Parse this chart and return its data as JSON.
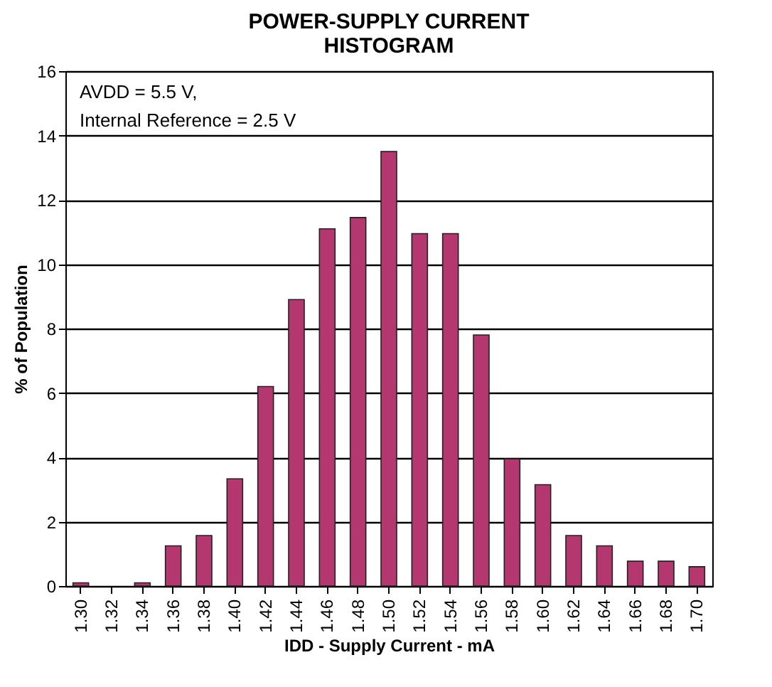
{
  "chart_data": {
    "type": "bar",
    "title": "POWER-SUPPLY CURRENT\nHISTOGRAM",
    "xlabel": "IDD - Supply Current - mA",
    "ylabel": "% of Population",
    "annotations": [
      "AVDD = 5.5 V,",
      "Internal Reference = 2.5 V"
    ],
    "categories": [
      "1.30",
      "1.32",
      "1.34",
      "1.36",
      "1.38",
      "1.40",
      "1.42",
      "1.44",
      "1.46",
      "1.48",
      "1.50",
      "1.52",
      "1.54",
      "1.56",
      "1.58",
      "1.60",
      "1.62",
      "1.64",
      "1.66",
      "1.68",
      "1.70"
    ],
    "values": [
      0.1,
      0,
      0.1,
      1.25,
      1.57,
      3.33,
      6.2,
      8.9,
      11.1,
      11.45,
      13.5,
      10.95,
      10.95,
      7.8,
      3.95,
      3.15,
      1.57,
      1.25,
      0.77,
      0.77,
      0.6
    ],
    "color": "#b5376f",
    "ylim": [
      0,
      16
    ],
    "yticks": [
      0,
      2,
      4,
      6,
      8,
      10,
      12,
      14,
      16
    ],
    "grid": "y"
  }
}
